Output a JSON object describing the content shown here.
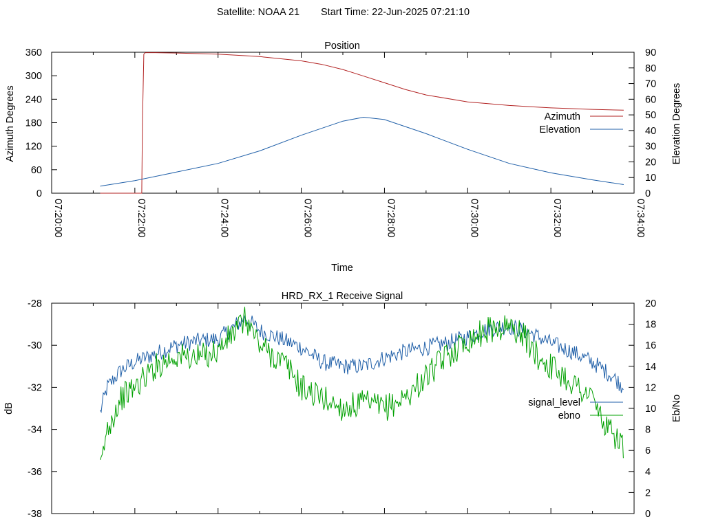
{
  "header": {
    "satellite": "Satellite: NOAA 21",
    "start_time": "Start Time: 22-Jun-2025 07:21:10"
  },
  "chart_data": [
    {
      "type": "line",
      "title": "Position",
      "xlabel": "Time",
      "ylabel": "Azimuth Degrees",
      "y2label": "Elevation Degrees",
      "x_ticks": [
        "07:20:00",
        "07:22:00",
        "07:24:00",
        "07:26:00",
        "07:28:00",
        "07:30:00",
        "07:32:00",
        "07:34:00"
      ],
      "xlim": [
        "07:20:00",
        "07:34:00"
      ],
      "ylim": [
        0,
        360
      ],
      "y_ticks": [
        0,
        60,
        120,
        180,
        240,
        300,
        360
      ],
      "y2lim": [
        0,
        90
      ],
      "y2_ticks": [
        0,
        10,
        20,
        30,
        40,
        50,
        60,
        70,
        80,
        90
      ],
      "legend_position": "right",
      "grid": false,
      "series": [
        {
          "name": "Azimuth",
          "axis": "y1",
          "color": "#b22222",
          "x": [
            "07:21:10",
            "07:22:00",
            "07:22:10",
            "07:22:11",
            "07:22:13",
            "07:22:15",
            "07:22:30",
            "07:23:00",
            "07:24:00",
            "07:25:00",
            "07:26:00",
            "07:26:30",
            "07:27:00",
            "07:27:30",
            "07:28:00",
            "07:28:30",
            "07:29:00",
            "07:30:00",
            "07:31:00",
            "07:32:00",
            "07:33:00",
            "07:33:45"
          ],
          "values": [
            0,
            0,
            0,
            180,
            355,
            359,
            359,
            358,
            355,
            349,
            338,
            329,
            316,
            299,
            282,
            265,
            251,
            233,
            224,
            218,
            214,
            212
          ]
        },
        {
          "name": "Elevation",
          "axis": "y2",
          "color": "#1f5fa8",
          "x": [
            "07:21:10",
            "07:22:00",
            "07:23:00",
            "07:24:00",
            "07:25:00",
            "07:26:00",
            "07:27:00",
            "07:27:30",
            "07:28:00",
            "07:29:00",
            "07:30:00",
            "07:31:00",
            "07:32:00",
            "07:33:00",
            "07:33:45"
          ],
          "values": [
            4.5,
            8,
            13.5,
            19,
            27,
            37,
            46,
            48.5,
            47,
            38,
            28,
            19,
            13,
            8.5,
            5.5
          ]
        }
      ]
    },
    {
      "type": "line",
      "title": "HRD_RX_1 Receive Signal",
      "xlabel": "",
      "ylabel": "dB",
      "y2label": "Eb/No",
      "xlim": [
        "07:20:00",
        "07:34:00"
      ],
      "ylim": [
        -38,
        -28
      ],
      "y_ticks": [
        -38,
        -36,
        -34,
        -32,
        -30,
        -28
      ],
      "y2lim": [
        0,
        20
      ],
      "y2_ticks": [
        0,
        2,
        4,
        6,
        8,
        10,
        12,
        14,
        16,
        18,
        20
      ],
      "legend_position": "right",
      "grid": false,
      "series": [
        {
          "name": "signal_level",
          "axis": "y1",
          "color": "#1f5fa8",
          "x": [
            "07:21:10",
            "07:21:20",
            "07:21:40",
            "07:22:00",
            "07:22:30",
            "07:23:00",
            "07:23:30",
            "07:24:00",
            "07:24:20",
            "07:24:40",
            "07:25:00",
            "07:25:30",
            "07:26:00",
            "07:26:30",
            "07:27:00",
            "07:27:30",
            "07:28:00",
            "07:28:30",
            "07:29:00",
            "07:29:30",
            "07:30:00",
            "07:30:30",
            "07:31:00",
            "07:31:30",
            "07:32:00",
            "07:32:30",
            "07:33:00",
            "07:33:30",
            "07:33:45"
          ],
          "values": [
            -33.2,
            -32.0,
            -31.2,
            -30.8,
            -30.4,
            -30.0,
            -29.8,
            -29.7,
            -29.2,
            -28.7,
            -29.3,
            -29.7,
            -30.1,
            -30.8,
            -31.0,
            -31.0,
            -30.6,
            -30.3,
            -30.1,
            -29.9,
            -29.6,
            -29.2,
            -29.1,
            -29.4,
            -29.9,
            -30.3,
            -30.8,
            -31.5,
            -32.0
          ],
          "noise": 0.4
        },
        {
          "name": "ebno",
          "axis": "y2",
          "color": "#00a000",
          "x": [
            "07:21:10",
            "07:21:20",
            "07:21:30",
            "07:21:40",
            "07:22:00",
            "07:22:30",
            "07:23:00",
            "07:23:30",
            "07:24:00",
            "07:24:20",
            "07:24:40",
            "07:25:00",
            "07:25:20",
            "07:25:40",
            "07:26:00",
            "07:26:30",
            "07:27:00",
            "07:27:30",
            "07:28:00",
            "07:28:30",
            "07:29:00",
            "07:29:30",
            "07:30:00",
            "07:30:30",
            "07:31:00",
            "07:31:20",
            "07:31:40",
            "07:32:00",
            "07:32:30",
            "07:33:00",
            "07:33:20",
            "07:33:40",
            "07:33:45"
          ],
          "values": [
            4,
            8,
            9.5,
            11,
            12,
            14,
            15,
            14.8,
            15.5,
            17,
            18.5,
            16,
            15,
            14,
            12,
            11,
            10,
            10.5,
            10,
            11,
            13,
            15,
            16.5,
            17.5,
            17.8,
            17,
            15,
            14,
            12.5,
            11,
            8,
            7,
            6
          ],
          "noise": 1.3
        }
      ]
    }
  ]
}
